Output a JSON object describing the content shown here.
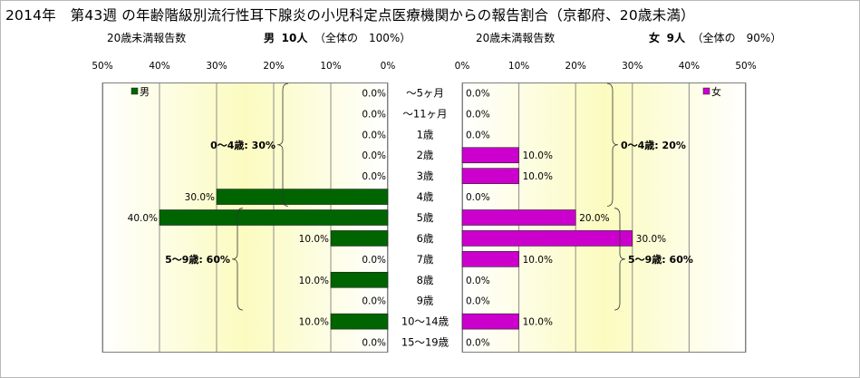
{
  "title": "2014年　第43週 の年齢階級別流行性耳下腺炎の小児科定点医療機関からの報告割合（京都府、20歳未満）",
  "male_header": {
    "label": "20歳未満報告数",
    "sex": "男",
    "count": "10人",
    "total": "（全体の　100%）"
  },
  "female_header": {
    "label": "20歳未満報告数",
    "sex": "女",
    "count": "9人",
    "total": "（全体の　90%）"
  },
  "colors": {
    "male": "#006400",
    "female": "#cc00cc",
    "plot_bg_edge": "#ffffff",
    "plot_bg_center": "#fbfbc0"
  },
  "chart_data": [
    {
      "type": "bar",
      "orientation": "horizontal",
      "side": "left",
      "legend": "男",
      "legend_position": "top-left",
      "xlim": [
        0,
        50
      ],
      "ticks": [
        "0%",
        "10%",
        "20%",
        "30%",
        "40%",
        "50%"
      ],
      "categories": [
        "～5ヶ月",
        "～11ヶ月",
        "1歳",
        "2歳",
        "3歳",
        "4歳",
        "5歳",
        "6歳",
        "7歳",
        "8歳",
        "9歳",
        "10～14歳",
        "15～19歳"
      ],
      "values": [
        0,
        0,
        0,
        0,
        0,
        30,
        40,
        10,
        0,
        10,
        0,
        10,
        0
      ],
      "value_labels": [
        "0.0%",
        "0.0%",
        "0.0%",
        "0.0%",
        "0.0%",
        "30.0%",
        "40.0%",
        "10.0%",
        "0.0%",
        "10.0%",
        "0.0%",
        "10.0%",
        "0.0%"
      ],
      "groups": [
        {
          "label": "0～4歳: 30%",
          "from": 0,
          "to": 5
        },
        {
          "label": "5～9歳: 60%",
          "from": 6,
          "to": 10
        }
      ]
    },
    {
      "type": "bar",
      "orientation": "horizontal",
      "side": "right",
      "legend": "女",
      "legend_position": "top-right",
      "xlim": [
        0,
        50
      ],
      "ticks": [
        "0%",
        "10%",
        "20%",
        "30%",
        "40%",
        "50%"
      ],
      "categories": [
        "～5ヶ月",
        "～11ヶ月",
        "1歳",
        "2歳",
        "3歳",
        "4歳",
        "5歳",
        "6歳",
        "7歳",
        "8歳",
        "9歳",
        "10～14歳",
        "15～19歳"
      ],
      "values": [
        0,
        0,
        0,
        10,
        10,
        0,
        20,
        30,
        10,
        0,
        0,
        10,
        0
      ],
      "value_labels": [
        "0.0%",
        "0.0%",
        "0.0%",
        "10.0%",
        "10.0%",
        "0.0%",
        "20.0%",
        "30.0%",
        "10.0%",
        "0.0%",
        "0.0%",
        "10.0%",
        "0.0%"
      ],
      "groups": [
        {
          "label": "0～4歳: 20%",
          "from": 0,
          "to": 5
        },
        {
          "label": "5～9歳: 60%",
          "from": 6,
          "to": 10
        }
      ]
    }
  ]
}
